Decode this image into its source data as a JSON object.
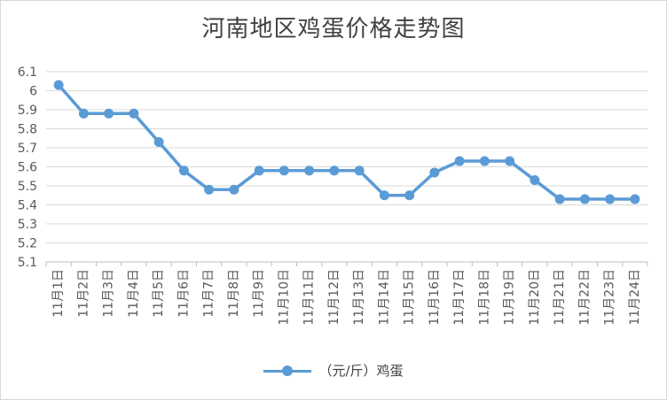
{
  "chart_data": {
    "type": "line",
    "title": "河南地区鸡蛋价格走势图",
    "categories": [
      "11月1日",
      "11月2日",
      "11月3日",
      "11月4日",
      "11月5日",
      "11月6日",
      "11月7日",
      "11月8日",
      "11月9日",
      "11月10日",
      "11月11日",
      "11月12日",
      "11月13日",
      "11月14日",
      "11月15日",
      "11月16日",
      "11月17日",
      "11月18日",
      "11月19日",
      "11月20日",
      "11月21日",
      "11月22日",
      "11月23日",
      "11月24日"
    ],
    "series": [
      {
        "name": "（元/斤）鸡蛋",
        "values": [
          6.03,
          5.88,
          5.88,
          5.88,
          5.73,
          5.58,
          5.48,
          5.48,
          5.58,
          5.58,
          5.58,
          5.58,
          5.58,
          5.45,
          5.45,
          5.57,
          5.63,
          5.63,
          5.63,
          5.53,
          5.43,
          5.43,
          5.43,
          5.43
        ]
      }
    ],
    "ylim": [
      5.1,
      6.1
    ],
    "yticks": [
      "6.1",
      "6",
      "5.9",
      "5.8",
      "5.7",
      "5.6",
      "5.5",
      "5.4",
      "5.3",
      "5.2",
      "5.1"
    ],
    "grid": true,
    "legend": "bottom",
    "color": "#5b9bd5"
  }
}
